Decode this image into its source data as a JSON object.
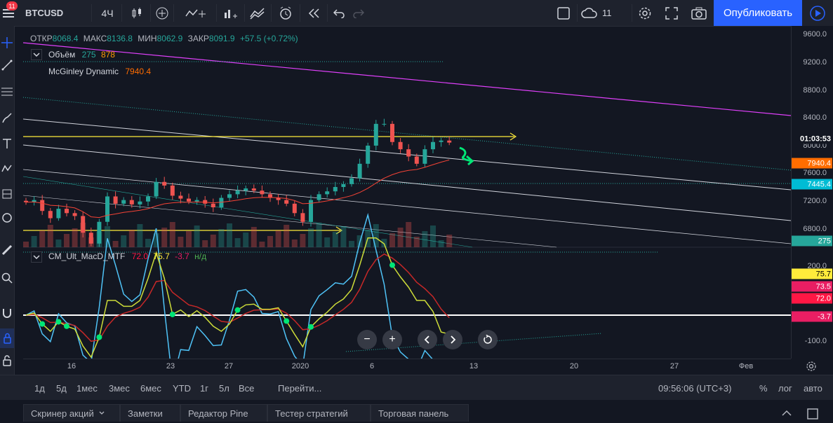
{
  "toolbar": {
    "notification_count": "11",
    "symbol": "BTCUSD",
    "interval": "4Ч",
    "alerts_count": "11",
    "publish_label": "Опубликовать"
  },
  "legend": {
    "open_label": "ОТКР",
    "open_value": "8068.4",
    "high_label": "МАКС",
    "high_value": "8136.8",
    "low_label": "МИН",
    "low_value": "8062.9",
    "close_label": "ЗАКР",
    "close_value": "8091.9",
    "change": "+57.5 (+0.72%)"
  },
  "volume_indicator": {
    "name": "Объём",
    "v1": "275",
    "v2": "878"
  },
  "mcginley": {
    "name": "McGinley Dynamic",
    "value": "7940.4"
  },
  "macd": {
    "name": "CM_Ult_MacD_MTF",
    "v1": "72.0",
    "v2": "75.7",
    "v3": "-3.7",
    "v4": "н/д"
  },
  "price_scale": {
    "ticks": [
      "9600.0",
      "9200.0",
      "8800.0",
      "8400.0",
      "8000.0",
      "7600.0",
      "7200.0",
      "6800.0"
    ],
    "countdown": "01:03:53",
    "labels": [
      {
        "text": "7940.4",
        "color": "#ff6d00"
      },
      {
        "text": "7445.4",
        "color": "#00bcd4"
      },
      {
        "text": "275",
        "color": "#26a69a"
      }
    ]
  },
  "macd_scale": {
    "ticks": [
      "200.0",
      "-100.0"
    ],
    "labels": [
      {
        "text": "75.7",
        "color": "#ffeb3b"
      },
      {
        "text": "73.5",
        "color": "#e91e63"
      },
      {
        "text": "72.0",
        "color": "#ff1744"
      },
      {
        "text": "-3.7",
        "color": "#e91e63"
      }
    ]
  },
  "time_axis": [
    "16",
    "23",
    "27",
    "2020",
    "6",
    "13",
    "20",
    "27",
    "Фев"
  ],
  "range_bar": {
    "ranges": [
      "1д",
      "5д",
      "1мес",
      "3мес",
      "6мес",
      "YTD",
      "1г",
      "5л",
      "Все"
    ],
    "goto": "Перейти...",
    "clock": "09:56:06 (UTC+3)",
    "percent": "%",
    "log": "лог",
    "auto": "авто"
  },
  "bottom_tabs": [
    "Скринер акций",
    "Заметки",
    "Редактор Pine",
    "Тестер стратегий",
    "Торговая панель"
  ],
  "chart_data": {
    "type": "candlestick",
    "symbol": "BTCUSD",
    "interval": "4Ч",
    "ylim": [
      6650,
      9700
    ],
    "close_approx": [
      7270,
      7300,
      7150,
      7050,
      7180,
      7120,
      7080,
      6850,
      6700,
      7000,
      7350,
      7250,
      7300,
      7240,
      7280,
      7350,
      7550,
      7500,
      7360,
      7320,
      7280,
      7300,
      7250,
      7200,
      7330,
      7380,
      7430,
      7460,
      7430,
      7380,
      7330,
      7300,
      7250,
      7120,
      7000,
      7300,
      7380,
      7420,
      7480,
      7520,
      7600,
      7800,
      8050,
      8350,
      8350,
      8100,
      8000,
      7900,
      7800,
      8000,
      8100,
      8120,
      8092
    ],
    "mcginley_last": 7940.4,
    "volume_last": 275,
    "macd": {
      "macd": 75.7,
      "signal": 72.0,
      "histogram": -3.7
    },
    "macd_ylim": [
      -160,
      260
    ]
  }
}
